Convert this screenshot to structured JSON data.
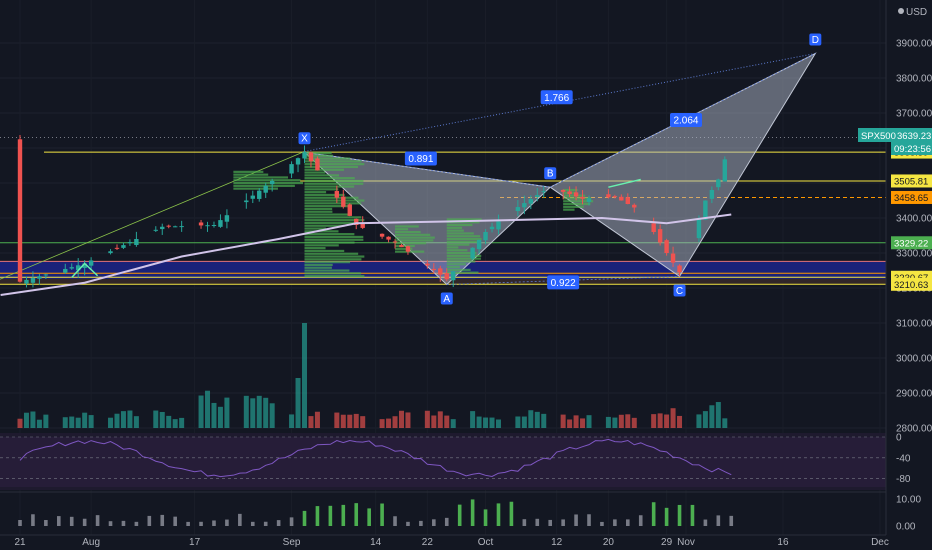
{
  "chart_data": {
    "type": "candlestick",
    "symbol": "SPX500",
    "last_price": "3639.23",
    "countdown": "09:23:56",
    "currency": "USD",
    "price_axis": {
      "ticks": [
        "3900.00",
        "3800.00",
        "3700.00",
        "3600.00",
        "3500.00",
        "3400.00",
        "3300.00",
        "3200.00",
        "3100.00",
        "3000.00",
        "2900.00",
        "2800.00"
      ],
      "values": [
        3900,
        3800,
        3700,
        3600,
        3500,
        3400,
        3300,
        3200,
        3100,
        3000,
        2900,
        2800
      ]
    },
    "price_tags": [
      {
        "label": "3588.39",
        "value": 3588.39,
        "color": "#f5e642"
      },
      {
        "label": "3505.81",
        "value": 3505.81,
        "color": "#f5e642"
      },
      {
        "label": "3458.65",
        "value": 3458.65,
        "color": "#ff9800"
      },
      {
        "label": "3329.22",
        "value": 3329.22,
        "color": "#4caf50"
      },
      {
        "label": "3230.67",
        "value": 3230.67,
        "color": "#f5e642"
      },
      {
        "label": "3210.63",
        "value": 3210.63,
        "color": "#f5e642"
      }
    ],
    "x_axis": {
      "ticks": [
        {
          "label": "21",
          "day": 0
        },
        {
          "label": "Aug",
          "day": 11
        },
        {
          "label": "17",
          "day": 27
        },
        {
          "label": "Sep",
          "day": 42
        },
        {
          "label": "14",
          "day": 55
        },
        {
          "label": "22",
          "day": 63
        },
        {
          "label": "Oct",
          "day": 72
        },
        {
          "label": "12",
          "day": 83
        },
        {
          "label": "20",
          "day": 91
        },
        {
          "label": "29",
          "day": 100
        },
        {
          "label": "Nov",
          "day": 103
        },
        {
          "label": "16",
          "day": 118
        },
        {
          "label": "Dec",
          "day": 133
        }
      ]
    },
    "harmonic_pattern": {
      "points": [
        {
          "label": "X",
          "day": 44,
          "price": 3588
        },
        {
          "label": "A",
          "day": 66,
          "price": 3210
        },
        {
          "label": "B",
          "day": 82,
          "price": 3488
        },
        {
          "label": "C",
          "day": 102,
          "price": 3233
        },
        {
          "label": "D",
          "day": 123,
          "price": 3870
        }
      ],
      "ratios": [
        {
          "label": "0.891",
          "day": 62,
          "price": 3570
        },
        {
          "label": "0.922",
          "day": 84,
          "price": 3216
        },
        {
          "label": "1.766",
          "day": 83,
          "price": 3745
        },
        {
          "label": "2.064",
          "day": 103,
          "price": 3680
        }
      ]
    },
    "rsi_axis": {
      "ticks": [
        "0",
        "-40",
        "-80"
      ],
      "values": [
        0,
        -40,
        -80
      ]
    },
    "histogram_axis": {
      "ticks": [
        "10.00",
        "0.00"
      ],
      "values": [
        10,
        0
      ]
    }
  }
}
